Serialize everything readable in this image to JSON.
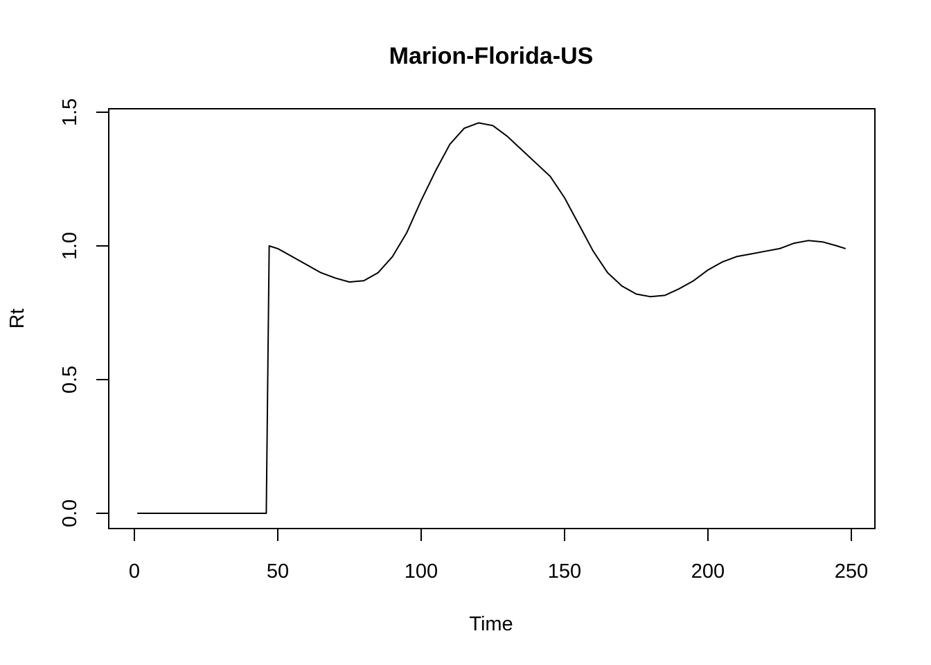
{
  "chart_data": {
    "type": "line",
    "title": "Marion-Florida-US",
    "xlabel": "Time",
    "ylabel": "Rt",
    "xlim": [
      1,
      248
    ],
    "ylim": [
      0.0,
      1.5
    ],
    "x_ticks": [
      {
        "value": 0,
        "label": "0"
      },
      {
        "value": 50,
        "label": "50"
      },
      {
        "value": 100,
        "label": "100"
      },
      {
        "value": 150,
        "label": "150"
      },
      {
        "value": 200,
        "label": "200"
      },
      {
        "value": 250,
        "label": "250"
      }
    ],
    "y_ticks": [
      {
        "value": 0.0,
        "label": "0.0"
      },
      {
        "value": 0.5,
        "label": "0.5"
      },
      {
        "value": 1.0,
        "label": "1.0"
      },
      {
        "value": 1.5,
        "label": "1.5"
      }
    ],
    "grid": false,
    "series": [
      {
        "color": "#000000",
        "points": [
          [
            1,
            0.0
          ],
          [
            10,
            0.0
          ],
          [
            20,
            0.0
          ],
          [
            30,
            0.0
          ],
          [
            40,
            0.0
          ],
          [
            46,
            0.0
          ],
          [
            47,
            1.0
          ],
          [
            50,
            0.99
          ],
          [
            55,
            0.96
          ],
          [
            60,
            0.93
          ],
          [
            65,
            0.9
          ],
          [
            70,
            0.88
          ],
          [
            75,
            0.865
          ],
          [
            80,
            0.87
          ],
          [
            85,
            0.9
          ],
          [
            90,
            0.96
          ],
          [
            95,
            1.05
          ],
          [
            100,
            1.17
          ],
          [
            105,
            1.28
          ],
          [
            110,
            1.38
          ],
          [
            115,
            1.44
          ],
          [
            120,
            1.46
          ],
          [
            125,
            1.45
          ],
          [
            130,
            1.41
          ],
          [
            135,
            1.36
          ],
          [
            140,
            1.31
          ],
          [
            145,
            1.26
          ],
          [
            150,
            1.18
          ],
          [
            155,
            1.08
          ],
          [
            160,
            0.98
          ],
          [
            165,
            0.9
          ],
          [
            170,
            0.85
          ],
          [
            175,
            0.82
          ],
          [
            180,
            0.81
          ],
          [
            185,
            0.815
          ],
          [
            190,
            0.84
          ],
          [
            195,
            0.87
          ],
          [
            200,
            0.91
          ],
          [
            205,
            0.94
          ],
          [
            210,
            0.96
          ],
          [
            215,
            0.97
          ],
          [
            220,
            0.98
          ],
          [
            225,
            0.99
          ],
          [
            230,
            1.01
          ],
          [
            235,
            1.02
          ],
          [
            240,
            1.015
          ],
          [
            245,
            1.0
          ],
          [
            248,
            0.99
          ]
        ]
      }
    ]
  }
}
